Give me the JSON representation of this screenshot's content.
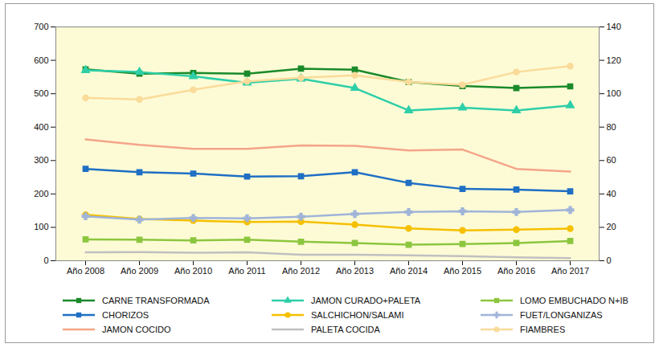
{
  "chart_data": {
    "type": "line",
    "categories": [
      "Año 2008",
      "Año 2009",
      "Año 2010",
      "Año 2011",
      "Año 2012",
      "Año 2013",
      "Año 2014",
      "Año 2015",
      "Año 2016",
      "Año 2017"
    ],
    "ylim": [
      0,
      700
    ],
    "yticks": [
      0,
      100,
      200,
      300,
      400,
      500,
      600,
      700
    ],
    "y2lim": [
      0,
      140
    ],
    "y2ticks": [
      0,
      20,
      40,
      60,
      80,
      100,
      120,
      140
    ],
    "grid": true,
    "legend": "bottom",
    "series": [
      {
        "name": "CARNE TRANSFORMADA",
        "color": "#1a8a2a",
        "marker": "square",
        "values": [
          573,
          560,
          562,
          560,
          575,
          572,
          535,
          523,
          517,
          522
        ]
      },
      {
        "name": "JAMON CURADO+PALETA",
        "color": "#2ecfa8",
        "marker": "triangle",
        "axis": "y2",
        "values": [
          114,
          113,
          110.4,
          106.6,
          109,
          103.4,
          90,
          91.6,
          90,
          93
        ]
      },
      {
        "name": "LOMO EMBUCHADO N+IB",
        "color": "#8cc63f",
        "marker": "square",
        "axis": "y2",
        "values": [
          12.8,
          12.6,
          12.2,
          12.6,
          11.4,
          10.6,
          9.6,
          10,
          10.6,
          11.8
        ]
      },
      {
        "name": "CHORIZOS",
        "color": "#1f6fc4",
        "marker": "square",
        "axis": "y2",
        "values": [
          55,
          53,
          52.2,
          50.4,
          50.6,
          53,
          46.6,
          43,
          42.6,
          41.6
        ]
      },
      {
        "name": "SALCHICHON/SALAMI",
        "color": "#f5c000",
        "marker": "circle",
        "axis": "y2",
        "values": [
          27.6,
          25,
          24,
          23.2,
          23.4,
          21.6,
          19.4,
          18.2,
          18.6,
          19.2
        ]
      },
      {
        "name": "FUET/LONGANIZAS",
        "color": "#a0b4d8",
        "marker": "cross",
        "axis": "y2",
        "values": [
          26.6,
          24.6,
          25.6,
          25.4,
          26.4,
          28,
          29.2,
          29.6,
          29.2,
          30.4
        ]
      },
      {
        "name": "JAMON COCIDO",
        "color": "#f4a58a",
        "marker": "none",
        "axis": "y2",
        "values": [
          72.6,
          69.4,
          67,
          67,
          69,
          68.8,
          66,
          66.6,
          55,
          53.4
        ]
      },
      {
        "name": "PALETA COCIDA",
        "color": "#c0c0c0",
        "marker": "none",
        "axis": "y2",
        "values": [
          5,
          5.2,
          4.8,
          5,
          3.6,
          3.6,
          3.2,
          2.8,
          2,
          1.6
        ]
      },
      {
        "name": "FIAMBRES",
        "color": "#fadb9a",
        "marker": "circle",
        "axis": "y2",
        "values": [
          97.6,
          96.6,
          102.4,
          107.4,
          109.6,
          111,
          107,
          105.4,
          113,
          116.6
        ]
      }
    ]
  }
}
